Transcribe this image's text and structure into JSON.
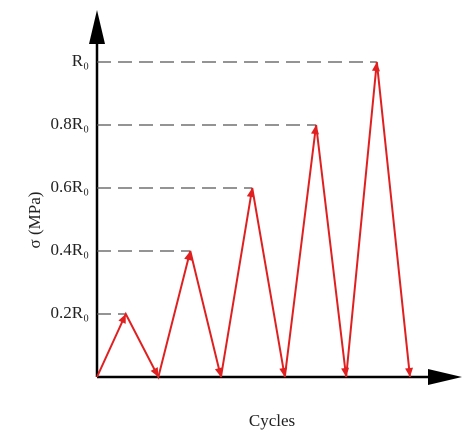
{
  "chart_data": {
    "type": "line",
    "x_label": "Cycles",
    "y_label": "σ (MPa)",
    "x": [
      0,
      0.46,
      0.98,
      1.49,
      1.98,
      2.48,
      3.0,
      3.5,
      3.98,
      4.47,
      5.0
    ],
    "series": [
      {
        "color": "#e02020",
        "values": [
          0,
          0.2,
          0,
          0.4,
          0,
          0.6,
          0,
          0.8,
          0,
          1.0,
          0
        ]
      }
    ],
    "xlim": [
      0,
      5.7
    ],
    "ylim": [
      0,
      1.16
    ],
    "yticks": [
      {
        "value": 0.2,
        "label": "0.2R₀"
      },
      {
        "value": 0.4,
        "label": "0.4R₀"
      },
      {
        "value": 0.6,
        "label": "0.6R₀"
      },
      {
        "value": 0.8,
        "label": "0.8R₀"
      },
      {
        "value": 1.0,
        "label": "R₀"
      }
    ],
    "grid": true
  }
}
